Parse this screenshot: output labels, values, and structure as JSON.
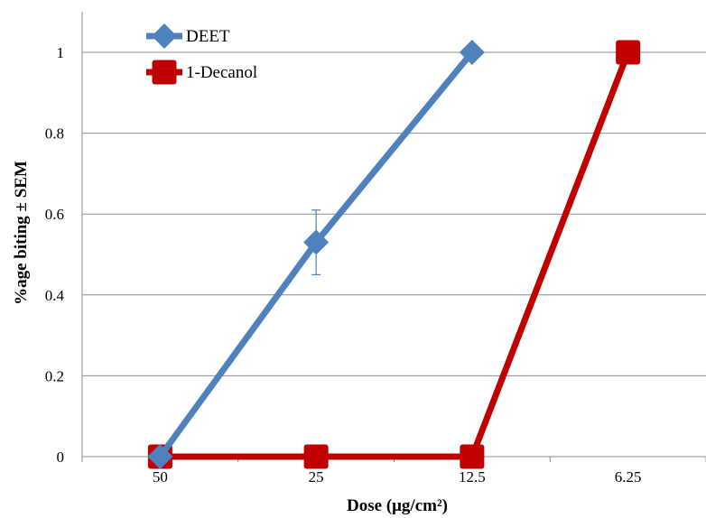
{
  "chart_data": {
    "type": "line",
    "title": "",
    "xlabel": "Dose (μg/cm²)",
    "ylabel": "%age biting ± SEM",
    "categories": [
      "50",
      "25",
      "12.5",
      "6.25"
    ],
    "ylim": [
      0,
      1
    ],
    "yticks": [
      0,
      0.2,
      0.4,
      0.6,
      0.8,
      1
    ],
    "ytick_labels": [
      "0",
      "0.2",
      "0.4",
      "0.6",
      "0.8",
      "1"
    ],
    "grid": true,
    "legend_position": "top-left",
    "series": [
      {
        "name": "DEET",
        "color": "#4F81BD",
        "marker": "diamond",
        "values": [
          0,
          0.53,
          1,
          null
        ],
        "error": [
          null,
          0.08,
          null,
          null
        ]
      },
      {
        "name": "1-Decanol",
        "color": "#C00000",
        "marker": "square",
        "values": [
          0,
          0,
          0,
          1
        ],
        "error": [
          null,
          null,
          null,
          null
        ]
      }
    ]
  }
}
